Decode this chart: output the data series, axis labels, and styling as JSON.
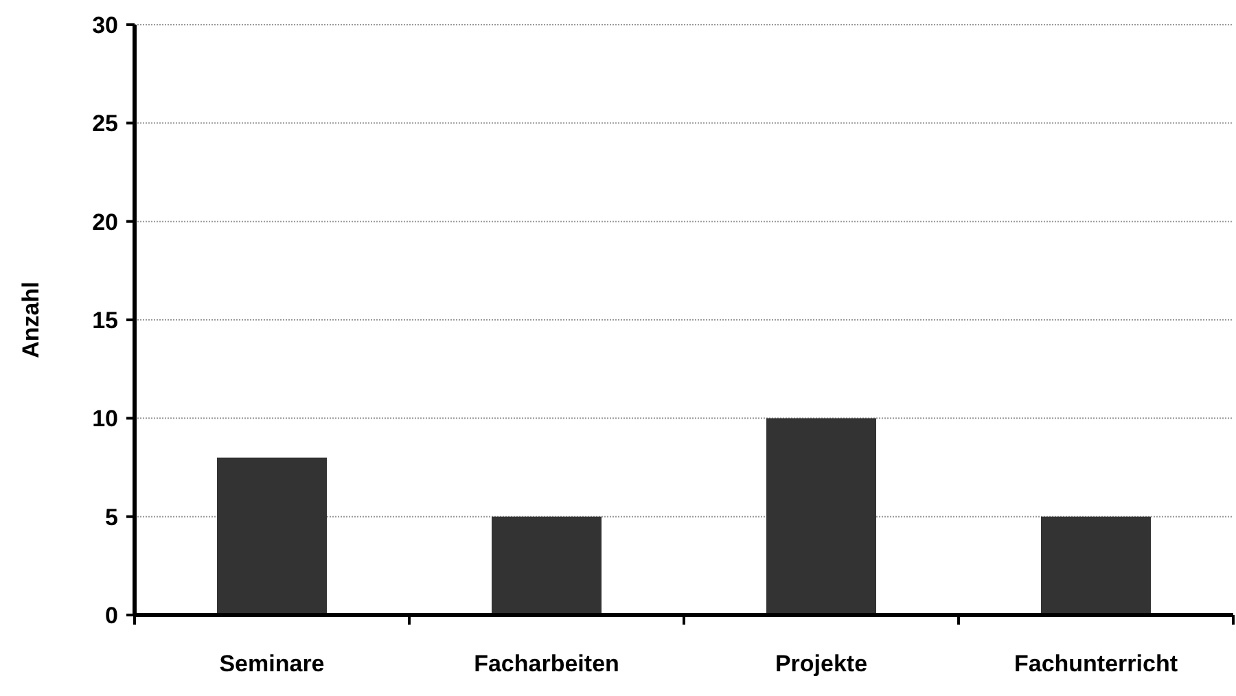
{
  "chart_data": {
    "type": "bar",
    "ylabel": "Anzahl",
    "categories": [
      "Seminare",
      "Facharbeiten",
      "Projekte",
      "Fachunterricht"
    ],
    "values": [
      8,
      5,
      10,
      5
    ],
    "color": "#333333",
    "ylim": [
      0,
      30
    ],
    "yticks": [
      0,
      5,
      10,
      15,
      20,
      25,
      30
    ],
    "grid": "y"
  }
}
